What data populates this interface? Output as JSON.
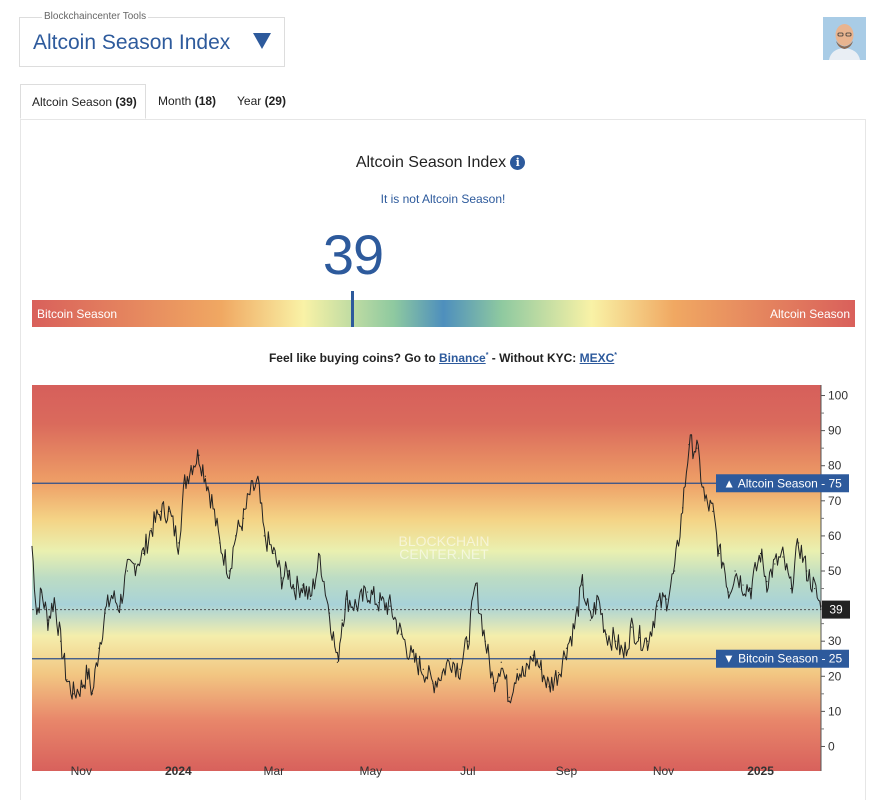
{
  "header": {
    "caption": "Blockchaincenter Tools",
    "title": "Altcoin Season Index"
  },
  "tabs": [
    {
      "label": "Altcoin Season",
      "count": "(39)"
    },
    {
      "label": "Month",
      "count": "(18)"
    },
    {
      "label": "Year",
      "count": "(29)"
    }
  ],
  "index": {
    "title": "Altcoin Season Index",
    "status": "It is not Altcoin Season!",
    "value": "39"
  },
  "gauge": {
    "left_label": "Bitcoin Season",
    "right_label": "Altcoin Season",
    "position": 39
  },
  "promo": {
    "prefix": "Feel like buying coins? Go to ",
    "link1": "Binance",
    "middle": " - Without KYC: ",
    "link2": "MEXC",
    "mark": "*"
  },
  "colors": {
    "accent": "#2d5a9c"
  },
  "chart_data": {
    "type": "line",
    "title": "",
    "watermark": [
      "BLOCKCHAIN",
      "CENTER.NET"
    ],
    "ylim": [
      -3,
      103
    ],
    "yticks": [
      "0",
      "10",
      "20",
      "30",
      "40",
      "50",
      "60",
      "70",
      "80",
      "90",
      "100"
    ],
    "x_labels": [
      "Nov",
      "2024",
      "Mar",
      "May",
      "Jul",
      "Sep",
      "Nov",
      "2025"
    ],
    "thresholds": [
      {
        "label": "▲ Altcoin Season - 75",
        "value": 75
      },
      {
        "label": "▼ Bitcoin Season - 25",
        "value": 25
      }
    ],
    "current": {
      "label": "39",
      "value": 39
    },
    "start": "2023-10-01",
    "end": "2025-02-08",
    "series": [
      {
        "name": "Altcoin Season Index",
        "x": [
          "2023-10-01",
          "2023-10-04",
          "2023-10-07",
          "2023-10-11",
          "2023-10-15",
          "2023-10-19",
          "2023-10-23",
          "2023-10-27",
          "2023-11-01",
          "2023-11-05",
          "2023-11-08",
          "2023-11-12",
          "2023-11-16",
          "2023-11-20",
          "2023-11-25",
          "2023-11-30",
          "2023-12-05",
          "2023-12-10",
          "2023-12-15",
          "2023-12-21",
          "2023-12-26",
          "2024-01-01",
          "2024-01-05",
          "2024-01-09",
          "2024-01-14",
          "2024-01-18",
          "2024-01-22",
          "2024-01-27",
          "2024-02-02",
          "2024-02-06",
          "2024-02-11",
          "2024-02-15",
          "2024-02-20",
          "2024-02-24",
          "2024-03-01",
          "2024-03-06",
          "2024-03-10",
          "2024-03-14",
          "2024-03-19",
          "2024-03-24",
          "2024-03-30",
          "2024-04-05",
          "2024-04-10",
          "2024-04-13",
          "2024-04-16",
          "2024-04-22",
          "2024-04-29",
          "2024-05-06",
          "2024-05-13",
          "2024-05-20",
          "2024-05-27",
          "2024-06-03",
          "2024-06-09",
          "2024-06-15",
          "2024-06-20",
          "2024-06-26",
          "2024-07-01",
          "2024-07-06",
          "2024-07-12",
          "2024-07-17",
          "2024-07-22",
          "2024-07-27",
          "2024-08-01",
          "2024-08-06",
          "2024-08-11",
          "2024-08-16",
          "2024-08-21",
          "2024-08-27",
          "2024-09-01",
          "2024-09-06",
          "2024-09-11",
          "2024-09-16",
          "2024-09-21",
          "2024-09-26",
          "2024-10-02",
          "2024-10-07",
          "2024-10-12",
          "2024-10-17",
          "2024-10-22",
          "2024-10-28",
          "2024-11-03",
          "2024-11-08",
          "2024-11-13",
          "2024-11-17",
          "2024-11-22",
          "2024-11-27",
          "2024-12-02",
          "2024-12-06",
          "2024-12-09",
          "2024-12-12",
          "2024-12-16",
          "2024-12-21",
          "2024-12-26",
          "2025-01-01",
          "2025-01-05",
          "2025-01-10",
          "2025-01-15",
          "2025-01-20",
          "2025-01-25",
          "2025-01-30",
          "2025-02-04",
          "2025-02-08"
        ],
        "y": [
          57,
          38,
          44,
          36,
          42,
          30,
          19,
          15,
          17,
          21,
          15,
          28,
          38,
          43,
          40,
          50,
          52,
          55,
          62,
          67,
          67,
          58,
          75,
          80,
          83,
          77,
          70,
          58,
          50,
          60,
          65,
          72,
          75,
          60,
          55,
          48,
          50,
          45,
          46,
          42,
          54,
          38,
          24,
          36,
          42,
          40,
          44,
          41,
          40,
          32,
          25,
          22,
          18,
          21,
          25,
          22,
          30,
          46,
          30,
          18,
          24,
          14,
          22,
          20,
          26,
          22,
          17,
          21,
          28,
          34,
          46,
          36,
          42,
          32,
          30,
          26,
          34,
          31,
          30,
          40,
          42,
          50,
          68,
          86,
          85,
          70,
          67,
          55,
          52,
          44,
          50,
          46,
          45,
          55,
          47,
          52,
          54,
          45,
          58,
          50,
          45,
          39
        ]
      }
    ]
  }
}
